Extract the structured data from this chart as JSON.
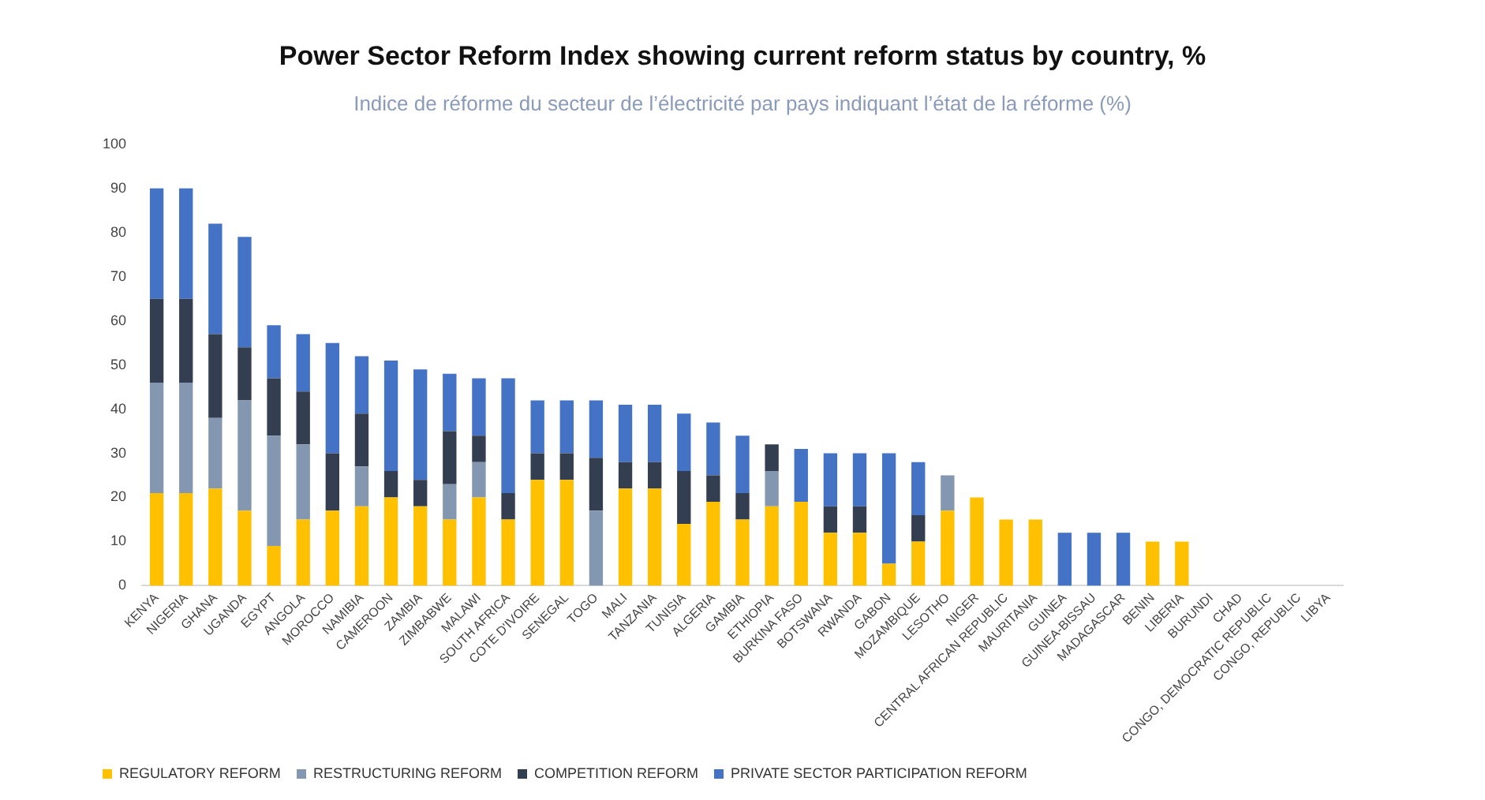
{
  "chart_data": {
    "type": "bar",
    "title": "Power Sector Reform Index showing current reform status by country, %",
    "subtitle": "Indice de réforme du secteur de l’électricité par pays indiquant l’état de la réforme (%)",
    "categories": [
      "KENYA",
      "NIGERIA",
      "GHANA",
      "UGANDA",
      "EGYPT",
      "ANGOLA",
      "MOROCCO",
      "NAMIBIA",
      "CAMEROON",
      "ZAMBIA",
      "ZIMBABWE",
      "MALAWI",
      "SOUTH AFRICA",
      "COTE D'IVOIRE",
      "SENEGAL",
      "TOGO",
      "MALI",
      "TANZANIA",
      "TUNISIA",
      "ALGERIA",
      "GAMBIA",
      "ETHIOPIA",
      "BURKINA FASO",
      "BOTSWANA",
      "RWANDA",
      "GABON",
      "MOZAMBIQUE",
      "LESOTHO",
      "NIGER",
      "CENTRAL AFRICAN REPUBLIC",
      "MAURITANIA",
      "GUINEA",
      "GUINEA-BISSAU",
      "MADAGASCAR",
      "BENIN",
      "LIBERIA",
      "BURUNDI",
      "CHAD",
      "CONGO, DEMOCRATIC REPUBLIC",
      "CONGO, REPUBLIC",
      "LIBYA"
    ],
    "series": [
      {
        "name": "REGULATORY REFORM",
        "color": "#ffc000",
        "values": [
          21,
          21,
          22,
          17,
          9,
          15,
          17,
          18,
          20,
          18,
          15,
          20,
          15,
          24,
          24,
          0,
          22,
          22,
          14,
          19,
          15,
          18,
          19,
          12,
          12,
          5,
          10,
          17,
          20,
          15,
          15,
          0,
          0,
          0,
          10,
          10,
          0,
          0,
          0,
          0,
          0
        ]
      },
      {
        "name": "RESTRUCTURING REFORM",
        "color": "#8497b0",
        "values": [
          25,
          25,
          16,
          25,
          25,
          17,
          0,
          9,
          0,
          0,
          8,
          8,
          0,
          0,
          0,
          17,
          0,
          0,
          0,
          0,
          0,
          8,
          0,
          0,
          0,
          0,
          0,
          8,
          0,
          0,
          0,
          0,
          0,
          0,
          0,
          0,
          0,
          0,
          0,
          0,
          0
        ]
      },
      {
        "name": "COMPETITION REFORM",
        "color": "#333f50",
        "values": [
          19,
          19,
          19,
          12,
          13,
          12,
          13,
          12,
          6,
          6,
          12,
          6,
          6,
          6,
          6,
          12,
          6,
          6,
          12,
          6,
          6,
          6,
          0,
          6,
          6,
          0,
          6,
          0,
          0,
          0,
          0,
          0,
          0,
          0,
          0,
          0,
          0,
          0,
          0,
          0,
          0
        ]
      },
      {
        "name": "PRIVATE SECTOR PARTICIPATION REFORM",
        "color": "#4472c4",
        "values": [
          25,
          25,
          25,
          25,
          12,
          13,
          25,
          13,
          25,
          25,
          13,
          13,
          26,
          12,
          12,
          13,
          13,
          13,
          13,
          12,
          13,
          0,
          12,
          12,
          12,
          25,
          12,
          0,
          0,
          0,
          0,
          12,
          12,
          12,
          0,
          0,
          0,
          0,
          0,
          0,
          0
        ]
      }
    ],
    "stacked": true,
    "ylim": [
      0,
      100
    ],
    "yticks": [
      0,
      10,
      20,
      30,
      40,
      50,
      60,
      70,
      80,
      90,
      100
    ],
    "legend": "bottom"
  }
}
